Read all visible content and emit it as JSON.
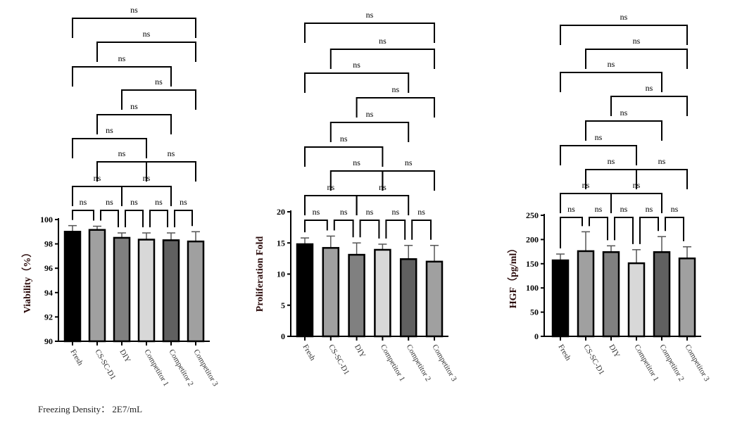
{
  "footer": "Freezing Density：  2E7/mL",
  "significance_label": "ns",
  "chart_data": [
    {
      "type": "bar",
      "ylabel": "Viability（%）",
      "ylim": [
        90,
        100
      ],
      "yticks": [
        90,
        92,
        94,
        96,
        98,
        100
      ],
      "categories": [
        "Fresh",
        "CS-SC-D1",
        "DIY",
        "Competitor 1",
        "Competitor 2",
        "Competitor 3"
      ],
      "values": [
        99.0,
        99.15,
        98.5,
        98.35,
        98.3,
        98.2
      ],
      "error_upper": [
        99.5,
        99.45,
        98.9,
        98.9,
        98.9,
        99.0
      ],
      "colors": [
        "#000000",
        "#a0a0a0",
        "#808080",
        "#d8d8d8",
        "#606060",
        "#a0a0a0"
      ],
      "comparisons": [
        [
          0,
          1
        ],
        [
          1,
          2
        ],
        [
          2,
          3
        ],
        [
          3,
          4
        ],
        [
          4,
          5
        ],
        [
          0,
          2
        ],
        [
          2,
          4
        ],
        [
          1,
          3
        ],
        [
          3,
          5
        ],
        [
          0,
          3
        ],
        [
          1,
          4
        ],
        [
          2,
          5
        ],
        [
          0,
          4
        ],
        [
          1,
          5
        ],
        [
          0,
          5
        ]
      ],
      "comparison_result": "ns"
    },
    {
      "type": "bar",
      "ylabel": "Proliferation Fold",
      "ylim": [
        0,
        20
      ],
      "yticks": [
        0,
        5,
        10,
        15,
        20
      ],
      "categories": [
        "Fresh",
        "CS-SC-D1",
        "DIY",
        "Competitor 1",
        "Competitor 2",
        "Competitor 3"
      ],
      "values": [
        14.8,
        14.2,
        13.1,
        13.9,
        12.4,
        12.0
      ],
      "error_upper": [
        15.8,
        16.1,
        15.0,
        14.8,
        14.6,
        14.6
      ],
      "colors": [
        "#000000",
        "#a0a0a0",
        "#808080",
        "#d8d8d8",
        "#606060",
        "#a0a0a0"
      ],
      "comparisons": [
        [
          0,
          1
        ],
        [
          1,
          2
        ],
        [
          2,
          3
        ],
        [
          3,
          4
        ],
        [
          4,
          5
        ],
        [
          0,
          2
        ],
        [
          2,
          4
        ],
        [
          1,
          3
        ],
        [
          3,
          5
        ],
        [
          0,
          3
        ],
        [
          1,
          4
        ],
        [
          2,
          5
        ],
        [
          0,
          4
        ],
        [
          1,
          5
        ],
        [
          0,
          5
        ]
      ],
      "comparison_result": "ns"
    },
    {
      "type": "bar",
      "ylabel": "HGF（pg/ml）",
      "ylim": [
        0,
        250
      ],
      "yticks": [
        0,
        50,
        100,
        150,
        200,
        250
      ],
      "categories": [
        "Fresh",
        "CS-SC-D1",
        "DIY",
        "Competitor 1",
        "Competitor 2",
        "Competitor 3"
      ],
      "values": [
        157,
        176,
        174,
        151,
        174,
        161
      ],
      "error_upper": [
        170,
        216,
        187,
        179,
        206,
        185
      ],
      "colors": [
        "#000000",
        "#a0a0a0",
        "#808080",
        "#d8d8d8",
        "#606060",
        "#a0a0a0"
      ],
      "comparisons": [
        [
          0,
          1
        ],
        [
          1,
          2
        ],
        [
          2,
          3
        ],
        [
          3,
          4
        ],
        [
          4,
          5
        ],
        [
          0,
          2
        ],
        [
          2,
          4
        ],
        [
          1,
          3
        ],
        [
          3,
          5
        ],
        [
          0,
          3
        ],
        [
          1,
          4
        ],
        [
          2,
          5
        ],
        [
          0,
          4
        ],
        [
          1,
          5
        ],
        [
          0,
          5
        ]
      ],
      "comparison_result": "ns"
    }
  ]
}
